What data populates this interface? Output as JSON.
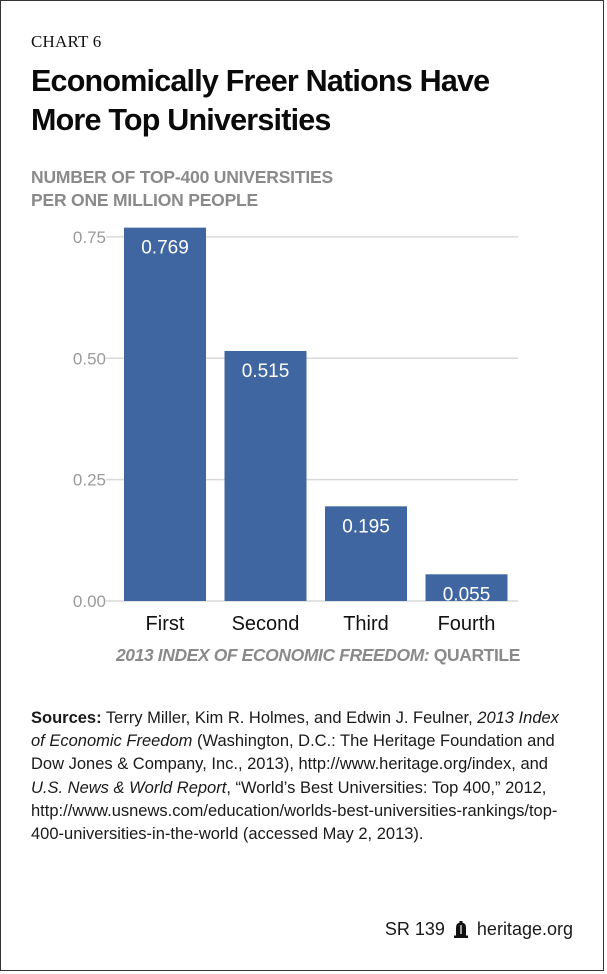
{
  "header": {
    "kicker": "CHART 6",
    "title_line1": "Economically Freer Nations Have",
    "title_line2": "More Top Universities"
  },
  "chart_data": {
    "type": "bar",
    "title": "Economically Freer Nations Have More Top Universities",
    "ylabel_line1": "NUMBER OF TOP-400 UNIVERSITIES",
    "ylabel_line2": "PER ONE MILLION PEOPLE",
    "xlabel_italic": "2013 INDEX OF ECONOMIC FREEDOM:",
    "xlabel_rest": " QUARTILE",
    "categories": [
      "First",
      "Second",
      "Third",
      "Fourth"
    ],
    "values": [
      0.769,
      0.515,
      0.195,
      0.055
    ],
    "data_labels": [
      "0.769",
      "0.515",
      "0.195",
      "0.055"
    ],
    "ylim": [
      0,
      0.769
    ],
    "yticks": [
      0,
      0.25,
      0.5,
      0.75
    ],
    "ytick_labels": [
      "0.00",
      "0.25",
      "0.50",
      "0.75"
    ],
    "grid": true,
    "legend": "none",
    "bar_color": "#3f66a0",
    "grid_color": "#d9d9d9"
  },
  "sources": {
    "label": "Sources:",
    "text_1": " Terry Miller, Kim R. Holmes, and Edwin J. Feulner, ",
    "italic_1": "2013 Index of Economic Freedom",
    "text_2": " (Washington, D.C.: The Heritage Foundation and Dow Jones & Company, Inc., 2013), http://www.heritage.org/index, and ",
    "italic_2": "U.S. News & World Report",
    "text_3": ", “World’s Best Universities: Top 400,” 2012, http://www.usnews.com/education/worlds-best-universities-rankings/top-400-universities-in-the-world (accessed May 2, 2013)."
  },
  "footer": {
    "report_id": "SR 139",
    "icon": "liberty-bell-icon",
    "site": "heritage.org"
  }
}
